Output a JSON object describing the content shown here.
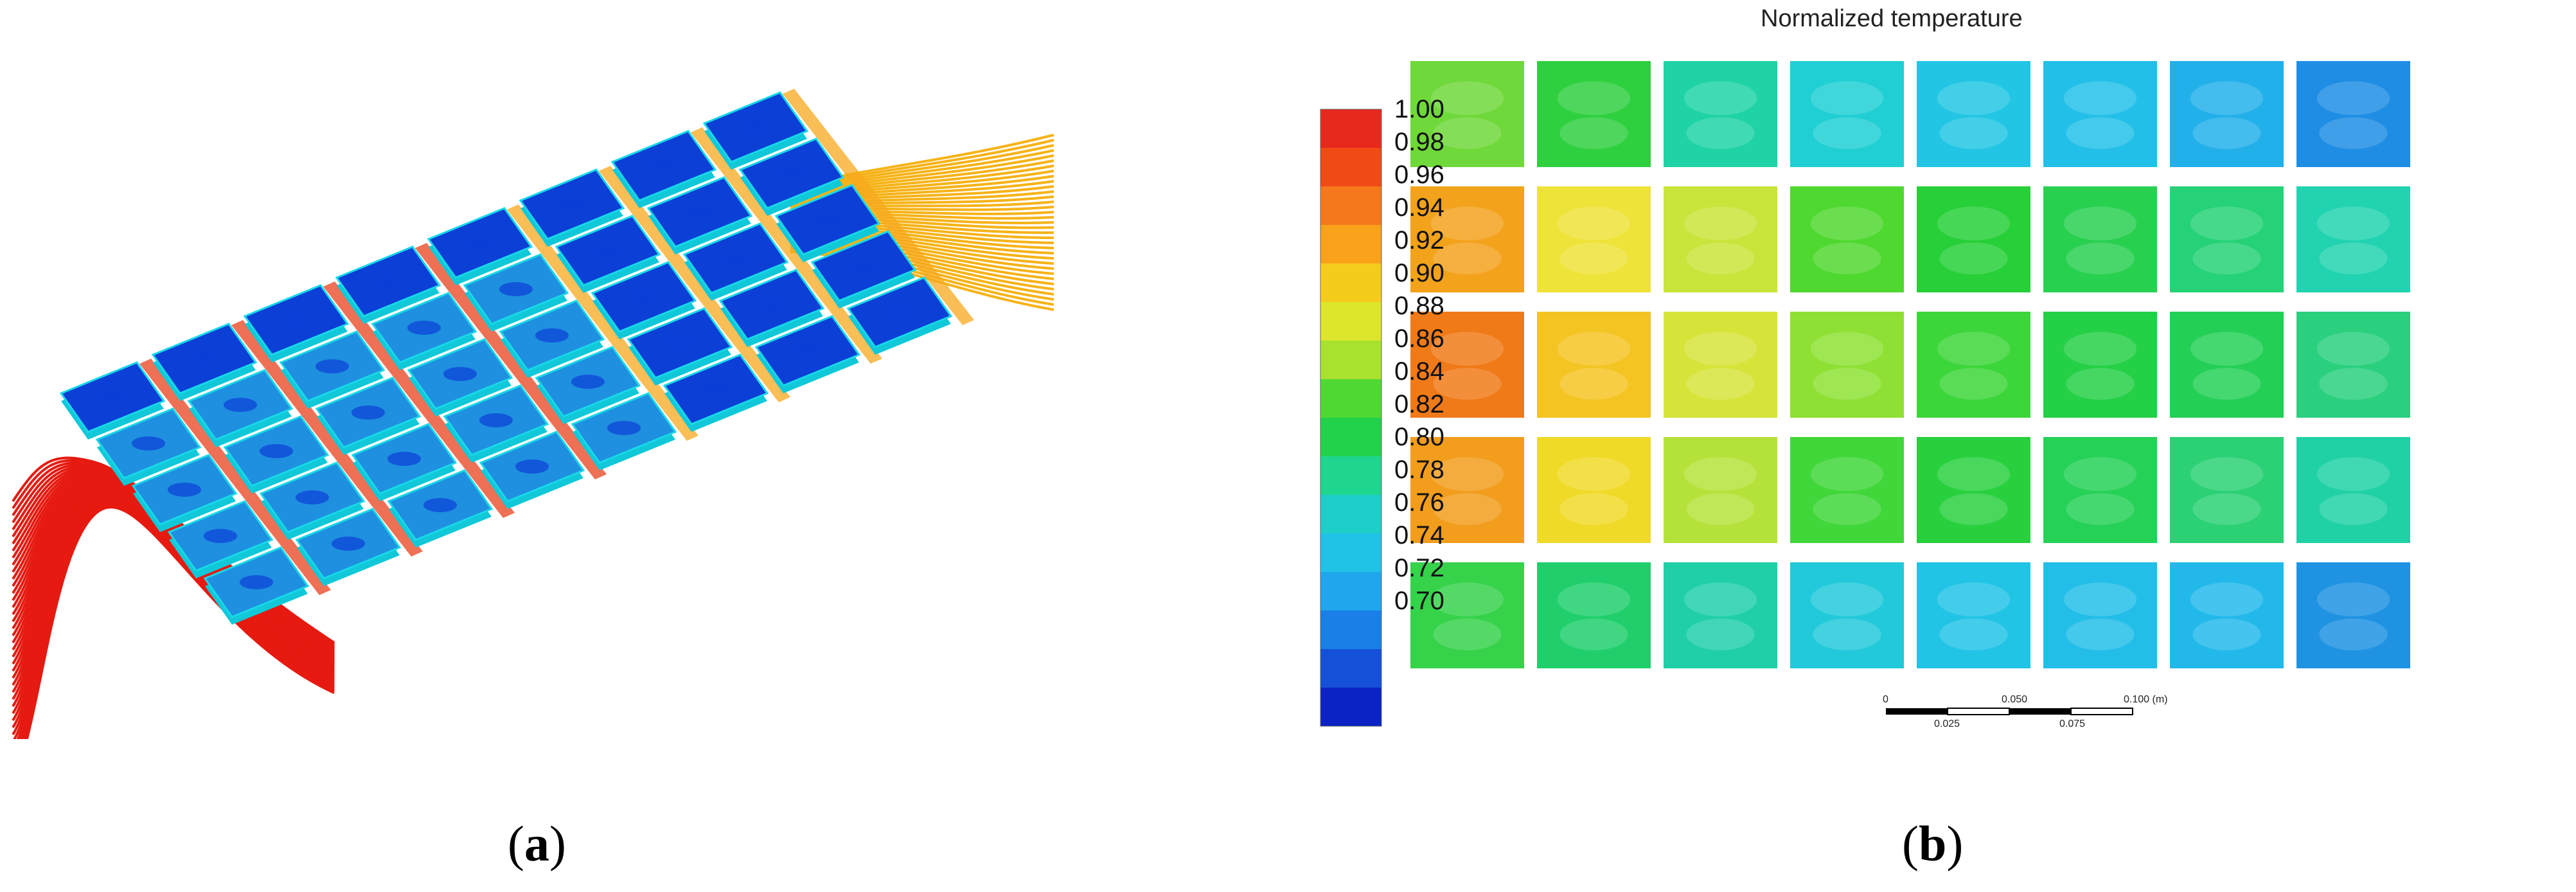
{
  "panel_a": {
    "caption_open": "(",
    "caption_letter": "a",
    "caption_close": ")"
  },
  "panel_b": {
    "caption_open": "(",
    "caption_letter": "b",
    "caption_close": ")",
    "title": "Normalized temperature",
    "legend": {
      "labels": [
        "1.00",
        "0.98",
        "0.96",
        "0.94",
        "0.92",
        "0.90",
        "0.88",
        "0.86",
        "0.84",
        "0.82",
        "0.80",
        "0.78",
        "0.76",
        "0.74",
        "0.72",
        "0.70"
      ],
      "colors": [
        "#e8281c",
        "#f04a16",
        "#f5781a",
        "#f9a21a",
        "#f5cc1c",
        "#dde62a",
        "#a8e22e",
        "#4fd833",
        "#22d24a",
        "#1ed68e",
        "#1ecfc9",
        "#20c2e6",
        "#1fa6ec",
        "#1a7fe6",
        "#1450d8",
        "#0b22c4"
      ]
    },
    "grid": {
      "rows": 5,
      "cols": 8,
      "cell_colors": [
        [
          "#6fd83a",
          "#2fd03f",
          "#1fd3a6",
          "#20cfd3",
          "#22c6e4",
          "#22bfe8",
          "#22b0ea",
          "#1f8de4"
        ],
        [
          "#f3a21c",
          "#eee338",
          "#c9e43a",
          "#4fd82f",
          "#27cf38",
          "#28d050",
          "#25d277",
          "#21d3b0"
        ],
        [
          "#f07a18",
          "#f4c422",
          "#d6e43a",
          "#8ee034",
          "#3cd63a",
          "#24d046",
          "#24cf56",
          "#2ad07e"
        ],
        [
          "#f29d1c",
          "#f0da28",
          "#b5e23a",
          "#41d73a",
          "#28d03e",
          "#25d156",
          "#2bd174",
          "#20d1a6"
        ],
        [
          "#35d24a",
          "#20cf6c",
          "#20cfa8",
          "#22c9da",
          "#22c4e6",
          "#22bee8",
          "#22b9ea",
          "#1f93e2"
        ]
      ]
    },
    "scalebar": {
      "top_labels": [
        "0",
        "0.050",
        "0.100 (m)"
      ],
      "bottom_labels": [
        "0.025",
        "0.075"
      ]
    }
  }
}
